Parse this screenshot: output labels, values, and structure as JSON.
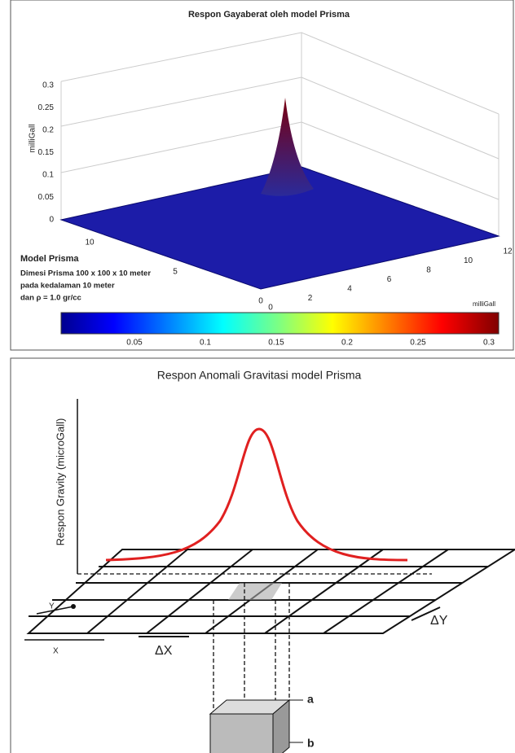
{
  "top_panel": {
    "title": "Respon Gayaberat oleh model Prisma",
    "z_label": "milliGall",
    "z_ticks": [
      "0.3",
      "0.25",
      "0.2",
      "0.15",
      "0.1",
      "0.05",
      "0"
    ],
    "x_ticks": [
      "0",
      "2",
      "4",
      "6",
      "8",
      "10",
      "12"
    ],
    "y_ticks": [
      "10",
      "5",
      "0"
    ],
    "legend_title": "Model Prisma",
    "legend_lines": [
      "Dimesi Prisma 100 x 100 x 10 meter",
      "pada kedalaman 10 meter",
      "dan ρ = 1.0 gr/cc"
    ],
    "colorbar_label": "milliGall",
    "colorbar_ticks": [
      "0.05",
      "0.1",
      "0.15",
      "0.2",
      "0.25",
      "0.3"
    ]
  },
  "bottom_panel": {
    "title": "Respon Anomali Gravitasi model Prisma",
    "y_label": "Respon Gravity (microGall)",
    "labels": {
      "x": "X",
      "y": "Y",
      "delta_x": "ΔX",
      "delta_y": "ΔY",
      "a": "a",
      "b": "b"
    }
  }
}
